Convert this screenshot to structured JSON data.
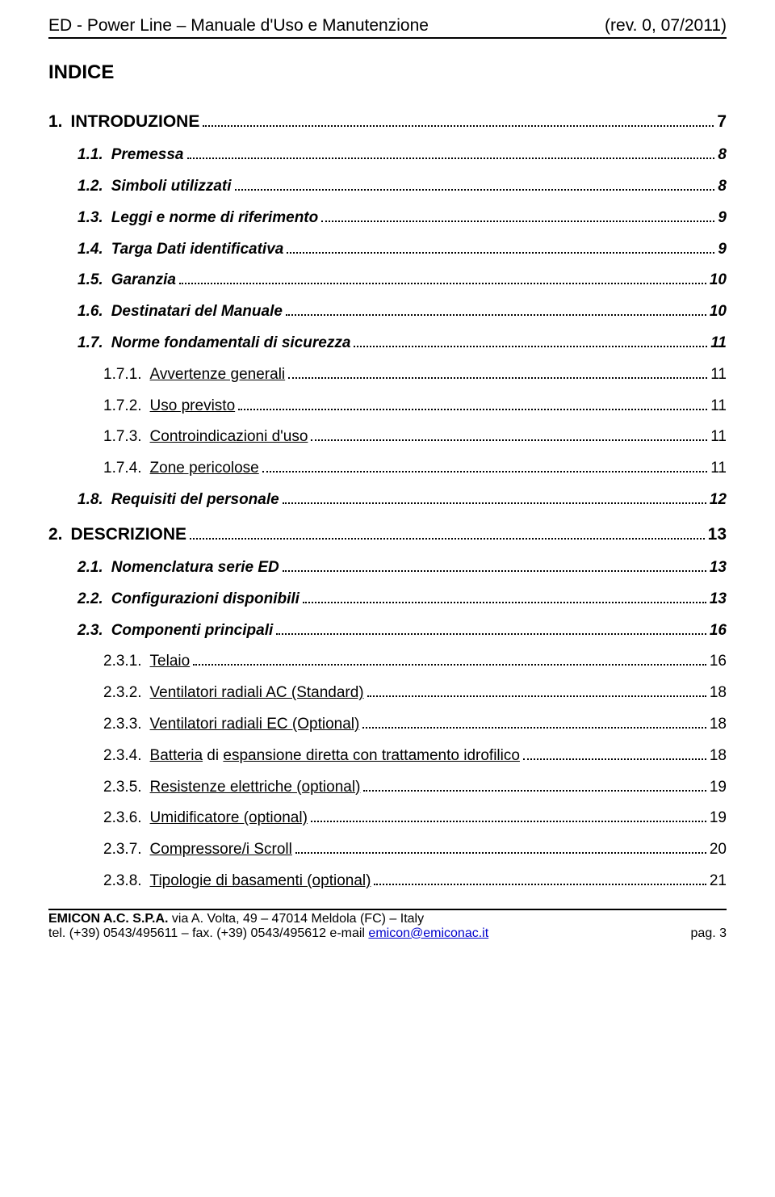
{
  "header": {
    "left": "ED - Power Line – Manuale d'Uso e Manutenzione",
    "right": "(rev. 0, 07/2011)"
  },
  "indice_title": "INDICE",
  "toc": [
    {
      "level": 1,
      "num": "1.",
      "label": "INTRODUZIONE",
      "page": "7",
      "underline": false
    },
    {
      "level": 2,
      "num": "1.1.",
      "label": "Premessa",
      "page": "8",
      "underline": false
    },
    {
      "level": 2,
      "num": "1.2.",
      "label": "Simboli utilizzati",
      "page": "8",
      "underline": false
    },
    {
      "level": 2,
      "num": "1.3.",
      "label": "Leggi e norme di riferimento",
      "page": "9",
      "underline": false
    },
    {
      "level": 2,
      "num": "1.4.",
      "label": "Targa Dati identificativa",
      "page": "9",
      "underline": false
    },
    {
      "level": 2,
      "num": "1.5.",
      "label": "Garanzia",
      "page": "10",
      "underline": false
    },
    {
      "level": 2,
      "num": "1.6.",
      "label": "Destinatari del Manuale",
      "page": "10",
      "underline": false
    },
    {
      "level": 2,
      "num": "1.7.",
      "label": "Norme fondamentali di sicurezza",
      "page": "11",
      "underline": false
    },
    {
      "level": 3,
      "num": "1.7.1.",
      "label": "Avvertenze generali",
      "page": "11",
      "underline": true
    },
    {
      "level": 3,
      "num": "1.7.2.",
      "label": "Uso previsto",
      "page": "11",
      "underline": true
    },
    {
      "level": 3,
      "num": "1.7.3.",
      "label": "Controindicazioni d'uso",
      "page": "11",
      "underline": true
    },
    {
      "level": 3,
      "num": "1.7.4.",
      "label": "Zone pericolose",
      "page": "11",
      "underline": true
    },
    {
      "level": 2,
      "num": "1.8.",
      "label": "Requisiti del personale",
      "page": "12",
      "underline": false
    },
    {
      "level": 1,
      "num": "2.",
      "label": "DESCRIZIONE",
      "page": "13",
      "underline": false
    },
    {
      "level": 2,
      "num": "2.1.",
      "label": "Nomenclatura serie ED",
      "page": "13",
      "underline": false
    },
    {
      "level": 2,
      "num": "2.2.",
      "label": "Configurazioni disponibili",
      "page": "13",
      "underline": false
    },
    {
      "level": 2,
      "num": "2.3.",
      "label": "Componenti principali",
      "page": "16",
      "underline": false
    },
    {
      "level": 3,
      "num": "2.3.1.",
      "label": "Telaio",
      "page": "16",
      "underline": true
    },
    {
      "level": 3,
      "num": "2.3.2.",
      "label": "Ventilatori radiali AC (Standard)",
      "page": "18",
      "underline": true
    },
    {
      "level": 3,
      "num": "2.3.3.",
      "label": "Ventilatori radiali EC (Optional)",
      "page": "18",
      "underline": true
    },
    {
      "level": 3,
      "num": "2.3.4.",
      "label_parts": [
        {
          "t": "Batteria",
          "u": true
        },
        {
          "t": " di ",
          "u": false
        },
        {
          "t": "espansione diretta con trattamento idrofilico",
          "u": true
        }
      ],
      "page": "18",
      "underline": "parts"
    },
    {
      "level": 3,
      "num": "2.3.5.",
      "label": "Resistenze elettriche (optional)",
      "page": "19",
      "underline": true
    },
    {
      "level": 3,
      "num": "2.3.6.",
      "label": "Umidificatore (optional)",
      "page": "19",
      "underline": true
    },
    {
      "level": 3,
      "num": "2.3.7.",
      "label": "Compressore/i Scroll",
      "page": "20",
      "underline": true
    },
    {
      "level": 3,
      "num": "2.3.8.",
      "label": "Tipologie di basamenti (optional)",
      "page": "21",
      "underline": true
    }
  ],
  "footer": {
    "company": "EMICON A.C. S.P.A.",
    "address": " via A. Volta, 49 – 47014 Meldola (FC) – Italy",
    "contact_prefix": "tel. (+39) 0543/495611 – fax. (+39) 0543/495612 e-mail ",
    "email": "emicon@emiconac.it",
    "page_label": "pag. 3"
  }
}
